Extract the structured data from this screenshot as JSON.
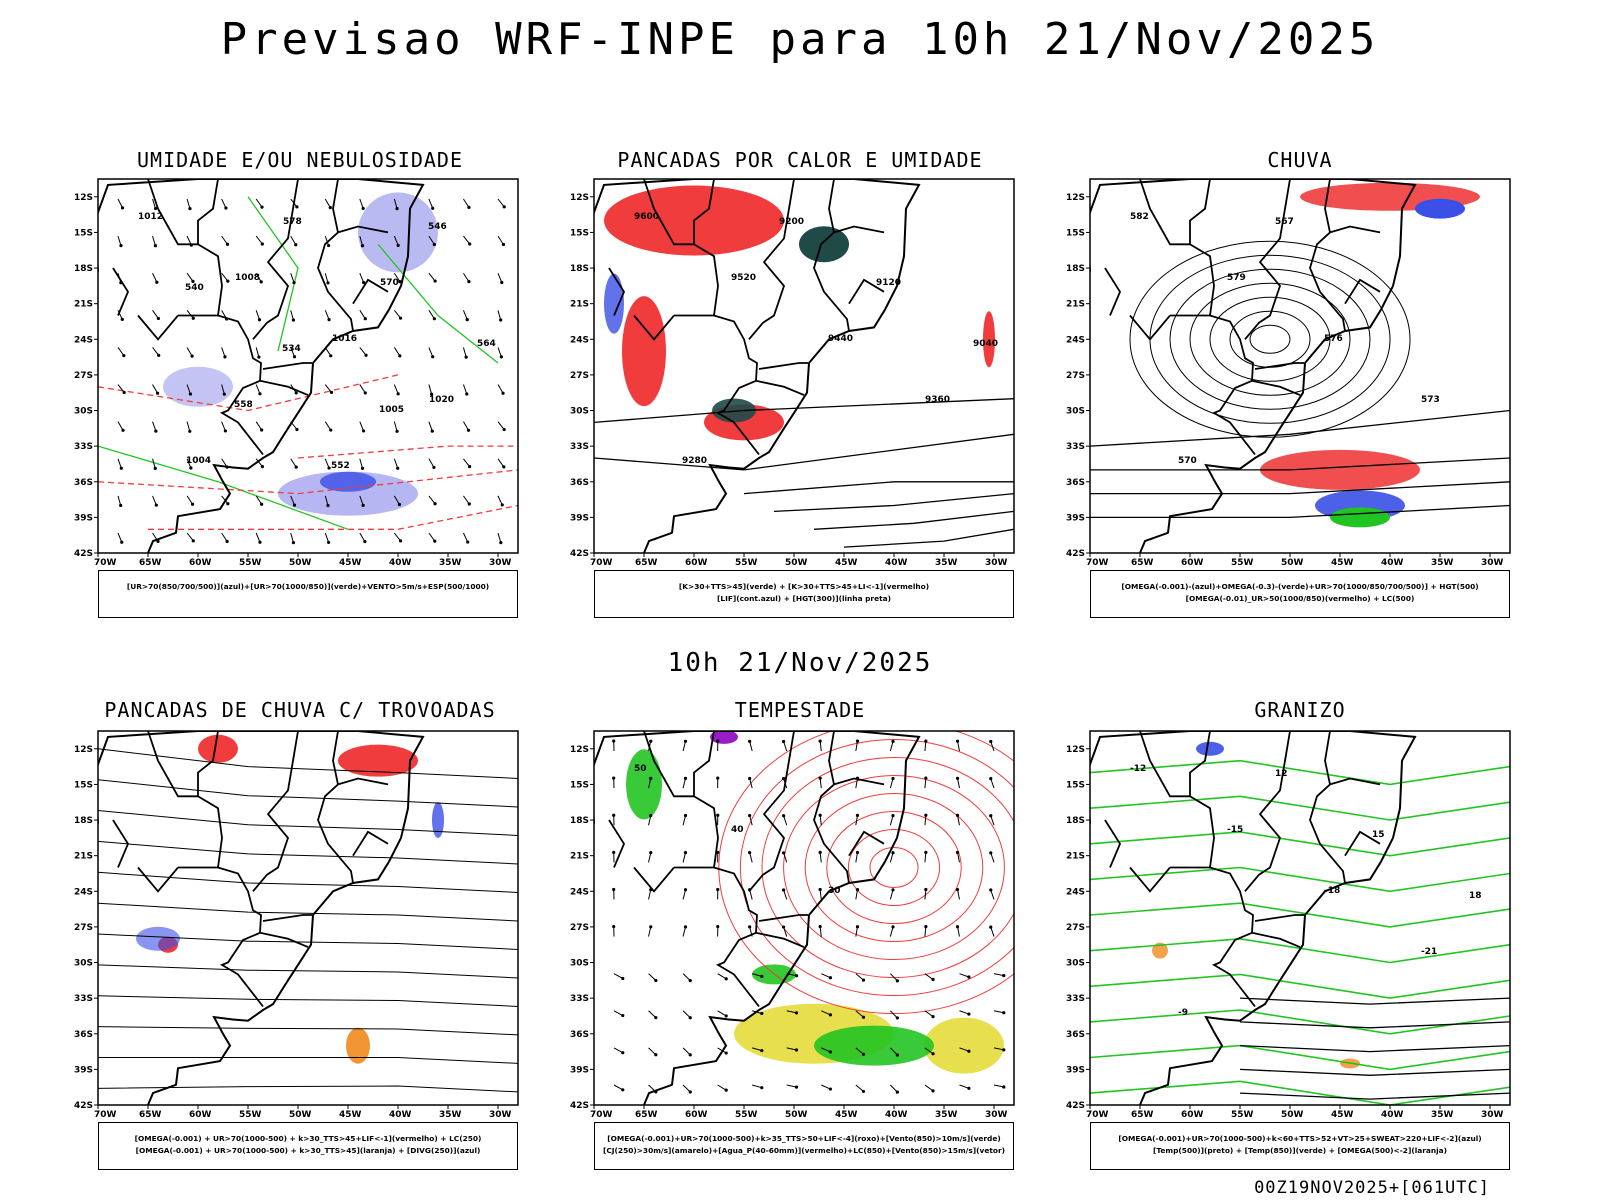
{
  "title": "Previsao WRF-INPE  para 10h 21/Nov/2025",
  "mid_time": "10h 21/Nov/2025",
  "footer": "00Z19NOV2025+[061UTC]",
  "lat_ticks": [
    "12S",
    "15S",
    "18S",
    "21S",
    "24S",
    "27S",
    "30S",
    "33S",
    "36S",
    "39S",
    "42S"
  ],
  "lon_ticks": [
    "70W",
    "65W",
    "60W",
    "55W",
    "50W",
    "45W",
    "40W",
    "35W",
    "30W"
  ],
  "colors": {
    "blue": "#3a4fe6",
    "green": "#22c422",
    "red": "#f03c3c",
    "lavender": "#a9a9f0",
    "dark_teal": "#1f4a48",
    "orange": "#f08a1e",
    "purple": "#9a1cc8",
    "yellow": "#e6dc3c"
  },
  "panels": [
    {
      "title": "UMIDADE E/OU NEBULOSIDADE",
      "legend": [
        "[UR>70(850/700/500)](azul)+[UR>70(1000/850)](verde)+VENTO>5m/s+ESP(500/1000)"
      ],
      "labels": [
        "1012",
        "1008",
        "1016",
        "1020",
        "1004",
        "578",
        "570",
        "564",
        "558",
        "552",
        "546",
        "540",
        "534",
        "1005"
      ]
    },
    {
      "title": "PANCADAS POR CALOR E UMIDADE",
      "legend": [
        "[K>30+TTS>45](verde) + [K>30+TTS>45+LI<-1](vermelho)",
        "[LIF](cont.azul) + [HGT(300)](linha preta)"
      ],
      "labels": [
        "9600",
        "9520",
        "9440",
        "9360",
        "9280",
        "9200",
        "9120",
        "9040"
      ]
    },
    {
      "title": "CHUVA",
      "legend": [
        "[OMEGA(-0.001)-(azul)+OMEGA(-0.3)-(verde)+UR>70(1000/850/700/500)] + HGT(500)",
        "[OMEGA(-0.01)_UR>50(1000/850)(vermelho) + LC(500)"
      ],
      "labels": [
        "582",
        "579",
        "576",
        "573",
        "570",
        "567"
      ]
    },
    {
      "title": "PANCADAS DE CHUVA C/ TROVOADAS",
      "legend": [
        "[OMEGA(-0.001) + UR>70(1000-500) + k>30_TTS>45+LIF<-1](vermelho) + LC(250)",
        "[OMEGA(-0.001) + UR>70(1000-500) + k>30_TTS>45](laranja) + [DIVG(250)](azul)"
      ],
      "labels": []
    },
    {
      "title": "TEMPESTADE",
      "legend": [
        "[OMEGA(-0.001)+UR>70(1000-500)+k>35_TTS>50+LIF<-4](roxo)+[Vento(850)>10m/s](verde)",
        "[CJ(250)>30m/s](amarelo)+[Agua_P(40-60mm)](vermelho)+LC(850)+[Vento(850)>15m/s](vetor)"
      ],
      "labels": [
        "50",
        "40",
        "30"
      ]
    },
    {
      "title": "GRANIZO",
      "legend": [
        "[OMEGA(-0.001)+UR>70(1000-500)+k<60+TTS>52+VT>25+SWEAT>220+LIF<-2](azul)",
        "[Temp(500)](preto) + [Temp(850)](verde) + [OMEGA(500)<-2](laranja)"
      ],
      "labels": [
        "-12",
        "-15",
        "-18",
        "-21",
        "-9",
        "12",
        "15",
        "18"
      ]
    }
  ]
}
